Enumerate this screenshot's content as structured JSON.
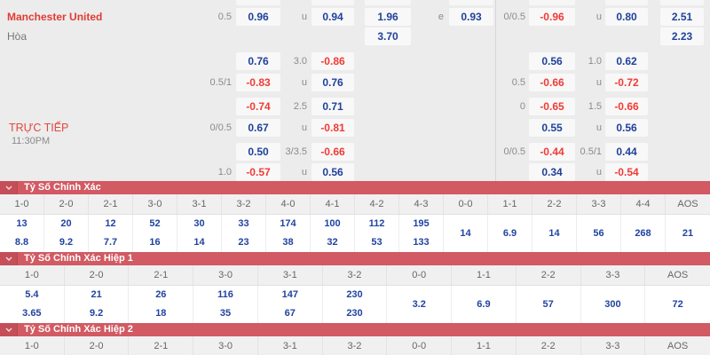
{
  "colors": {
    "section_bar": "#d15a63",
    "odds_blue": "#1f419b",
    "odds_red": "#f03b35",
    "team_red": "#e23b33"
  },
  "match": {
    "home_team": "Manchester United",
    "draw_label": "Hòa",
    "live_label": "TRỰC TIẾP",
    "live_time": "11:30PM"
  },
  "odds_grid": {
    "rows": [
      {
        "cells": [
          {
            "slot": "c1l",
            "kind": "label",
            "text": "0.5"
          },
          {
            "slot": "c1b",
            "kind": "pos",
            "text": "0.96"
          },
          {
            "slot": "c2l",
            "kind": "label",
            "text": "u"
          },
          {
            "slot": "c2b",
            "kind": "pos",
            "text": "0.94"
          },
          {
            "slot": "c3b",
            "kind": "pos",
            "text": "1.96"
          },
          {
            "slot": "c4l",
            "kind": "label",
            "text": "e"
          },
          {
            "slot": "c4b",
            "kind": "pos",
            "text": "0.93"
          },
          {
            "slot": "r1l",
            "kind": "label",
            "text": "0/0.5"
          },
          {
            "slot": "r1b",
            "kind": "neg",
            "text": "-0.96"
          },
          {
            "slot": "r2l",
            "kind": "label",
            "text": "u"
          },
          {
            "slot": "r2b",
            "kind": "pos",
            "text": "0.80"
          },
          {
            "slot": "r3b",
            "kind": "pos",
            "text": "2.51"
          }
        ]
      },
      {
        "cells": [
          {
            "slot": "c3b",
            "kind": "pos",
            "text": "3.70"
          },
          {
            "slot": "r3b",
            "kind": "pos",
            "text": "2.23"
          }
        ]
      },
      {
        "cells": [
          {
            "slot": "c1b",
            "kind": "pos",
            "text": "0.76"
          },
          {
            "slot": "c2l",
            "kind": "label",
            "text": "3.0"
          },
          {
            "slot": "c2b",
            "kind": "neg",
            "text": "-0.86"
          },
          {
            "slot": "r1b",
            "kind": "pos",
            "text": "0.56"
          },
          {
            "slot": "r2l",
            "kind": "label",
            "text": "1.0"
          },
          {
            "slot": "r2b",
            "kind": "pos",
            "text": "0.62"
          }
        ]
      },
      {
        "cells": [
          {
            "slot": "c1l",
            "kind": "label",
            "text": "0.5/1"
          },
          {
            "slot": "c1b",
            "kind": "neg",
            "text": "-0.83"
          },
          {
            "slot": "c2l",
            "kind": "label",
            "text": "u"
          },
          {
            "slot": "c2b",
            "kind": "pos",
            "text": "0.76"
          },
          {
            "slot": "r1l",
            "kind": "label",
            "text": "0.5"
          },
          {
            "slot": "r1b",
            "kind": "neg",
            "text": "-0.66"
          },
          {
            "slot": "r2l",
            "kind": "label",
            "text": "u"
          },
          {
            "slot": "r2b",
            "kind": "neg",
            "text": "-0.72"
          }
        ]
      },
      {
        "cells": [
          {
            "slot": "c1b",
            "kind": "neg",
            "text": "-0.74"
          },
          {
            "slot": "c2l",
            "kind": "label",
            "text": "2.5"
          },
          {
            "slot": "c2b",
            "kind": "pos",
            "text": "0.71"
          },
          {
            "slot": "r1l",
            "kind": "label",
            "text": "0"
          },
          {
            "slot": "r1b",
            "kind": "neg",
            "text": "-0.65"
          },
          {
            "slot": "r2l",
            "kind": "label",
            "text": "1.5"
          },
          {
            "slot": "r2b",
            "kind": "neg",
            "text": "-0.66"
          }
        ]
      },
      {
        "cells": [
          {
            "slot": "c1l",
            "kind": "label",
            "text": "0/0.5"
          },
          {
            "slot": "c1b",
            "kind": "pos",
            "text": "0.67"
          },
          {
            "slot": "c2l",
            "kind": "label",
            "text": "u"
          },
          {
            "slot": "c2b",
            "kind": "neg",
            "text": "-0.81"
          },
          {
            "slot": "r1b",
            "kind": "pos",
            "text": "0.55"
          },
          {
            "slot": "r2l",
            "kind": "label",
            "text": "u"
          },
          {
            "slot": "r2b",
            "kind": "pos",
            "text": "0.56"
          }
        ]
      },
      {
        "cells": [
          {
            "slot": "c1b",
            "kind": "pos",
            "text": "0.50"
          },
          {
            "slot": "c2l",
            "kind": "label",
            "text": "3/3.5"
          },
          {
            "slot": "c2b",
            "kind": "neg",
            "text": "-0.66"
          },
          {
            "slot": "r1l",
            "kind": "label",
            "text": "0/0.5"
          },
          {
            "slot": "r1b",
            "kind": "neg",
            "text": "-0.44"
          },
          {
            "slot": "r2l",
            "kind": "label",
            "text": "0.5/1"
          },
          {
            "slot": "r2b",
            "kind": "pos",
            "text": "0.44"
          }
        ]
      },
      {
        "cells": [
          {
            "slot": "c1l",
            "kind": "label",
            "text": "1.0"
          },
          {
            "slot": "c1b",
            "kind": "neg",
            "text": "-0.57"
          },
          {
            "slot": "c2l",
            "kind": "label",
            "text": "u"
          },
          {
            "slot": "c2b",
            "kind": "pos",
            "text": "0.56"
          },
          {
            "slot": "r1b",
            "kind": "pos",
            "text": "0.34"
          },
          {
            "slot": "r2l",
            "kind": "label",
            "text": "u"
          },
          {
            "slot": "r2b",
            "kind": "neg",
            "text": "-0.54"
          }
        ]
      }
    ]
  },
  "score_sections": [
    {
      "title": "Tỷ Số Chính Xác",
      "cells": [
        {
          "h": "1-0",
          "v": [
            "13",
            "8.8"
          ]
        },
        {
          "h": "2-0",
          "v": [
            "20",
            "9.2"
          ]
        },
        {
          "h": "2-1",
          "v": [
            "12",
            "7.7"
          ]
        },
        {
          "h": "3-0",
          "v": [
            "52",
            "16"
          ]
        },
        {
          "h": "3-1",
          "v": [
            "30",
            "14"
          ]
        },
        {
          "h": "3-2",
          "v": [
            "33",
            "23"
          ]
        },
        {
          "h": "4-0",
          "v": [
            "174",
            "38"
          ]
        },
        {
          "h": "4-1",
          "v": [
            "100",
            "32"
          ]
        },
        {
          "h": "4-2",
          "v": [
            "112",
            "53"
          ]
        },
        {
          "h": "4-3",
          "v": [
            "195",
            "133"
          ]
        },
        {
          "h": "0-0",
          "v": [
            "14"
          ]
        },
        {
          "h": "1-1",
          "v": [
            "6.9"
          ]
        },
        {
          "h": "2-2",
          "v": [
            "14"
          ]
        },
        {
          "h": "3-3",
          "v": [
            "56"
          ]
        },
        {
          "h": "4-4",
          "v": [
            "268"
          ]
        },
        {
          "h": "AOS",
          "v": [
            "21"
          ]
        }
      ]
    },
    {
      "title": "Tỷ Số Chính Xác Hiệp 1",
      "cells": [
        {
          "h": "1-0",
          "v": [
            "5.4",
            "3.65"
          ]
        },
        {
          "h": "2-0",
          "v": [
            "21",
            "9.2"
          ]
        },
        {
          "h": "2-1",
          "v": [
            "26",
            "18"
          ]
        },
        {
          "h": "3-0",
          "v": [
            "116",
            "35"
          ]
        },
        {
          "h": "3-1",
          "v": [
            "147",
            "67"
          ]
        },
        {
          "h": "3-2",
          "v": [
            "230",
            "230"
          ]
        },
        {
          "h": "0-0",
          "v": [
            "3.2"
          ]
        },
        {
          "h": "1-1",
          "v": [
            "6.9"
          ]
        },
        {
          "h": "2-2",
          "v": [
            "57"
          ]
        },
        {
          "h": "3-3",
          "v": [
            "300"
          ]
        },
        {
          "h": "AOS",
          "v": [
            "72"
          ]
        }
      ]
    },
    {
      "title": "Tỷ Số Chính Xác Hiệp 2",
      "cells": [
        {
          "h": "1-0",
          "v": []
        },
        {
          "h": "2-0",
          "v": []
        },
        {
          "h": "2-1",
          "v": []
        },
        {
          "h": "3-0",
          "v": []
        },
        {
          "h": "3-1",
          "v": []
        },
        {
          "h": "3-2",
          "v": []
        },
        {
          "h": "0-0",
          "v": []
        },
        {
          "h": "1-1",
          "v": []
        },
        {
          "h": "2-2",
          "v": []
        },
        {
          "h": "3-3",
          "v": []
        },
        {
          "h": "AOS",
          "v": []
        }
      ]
    }
  ]
}
